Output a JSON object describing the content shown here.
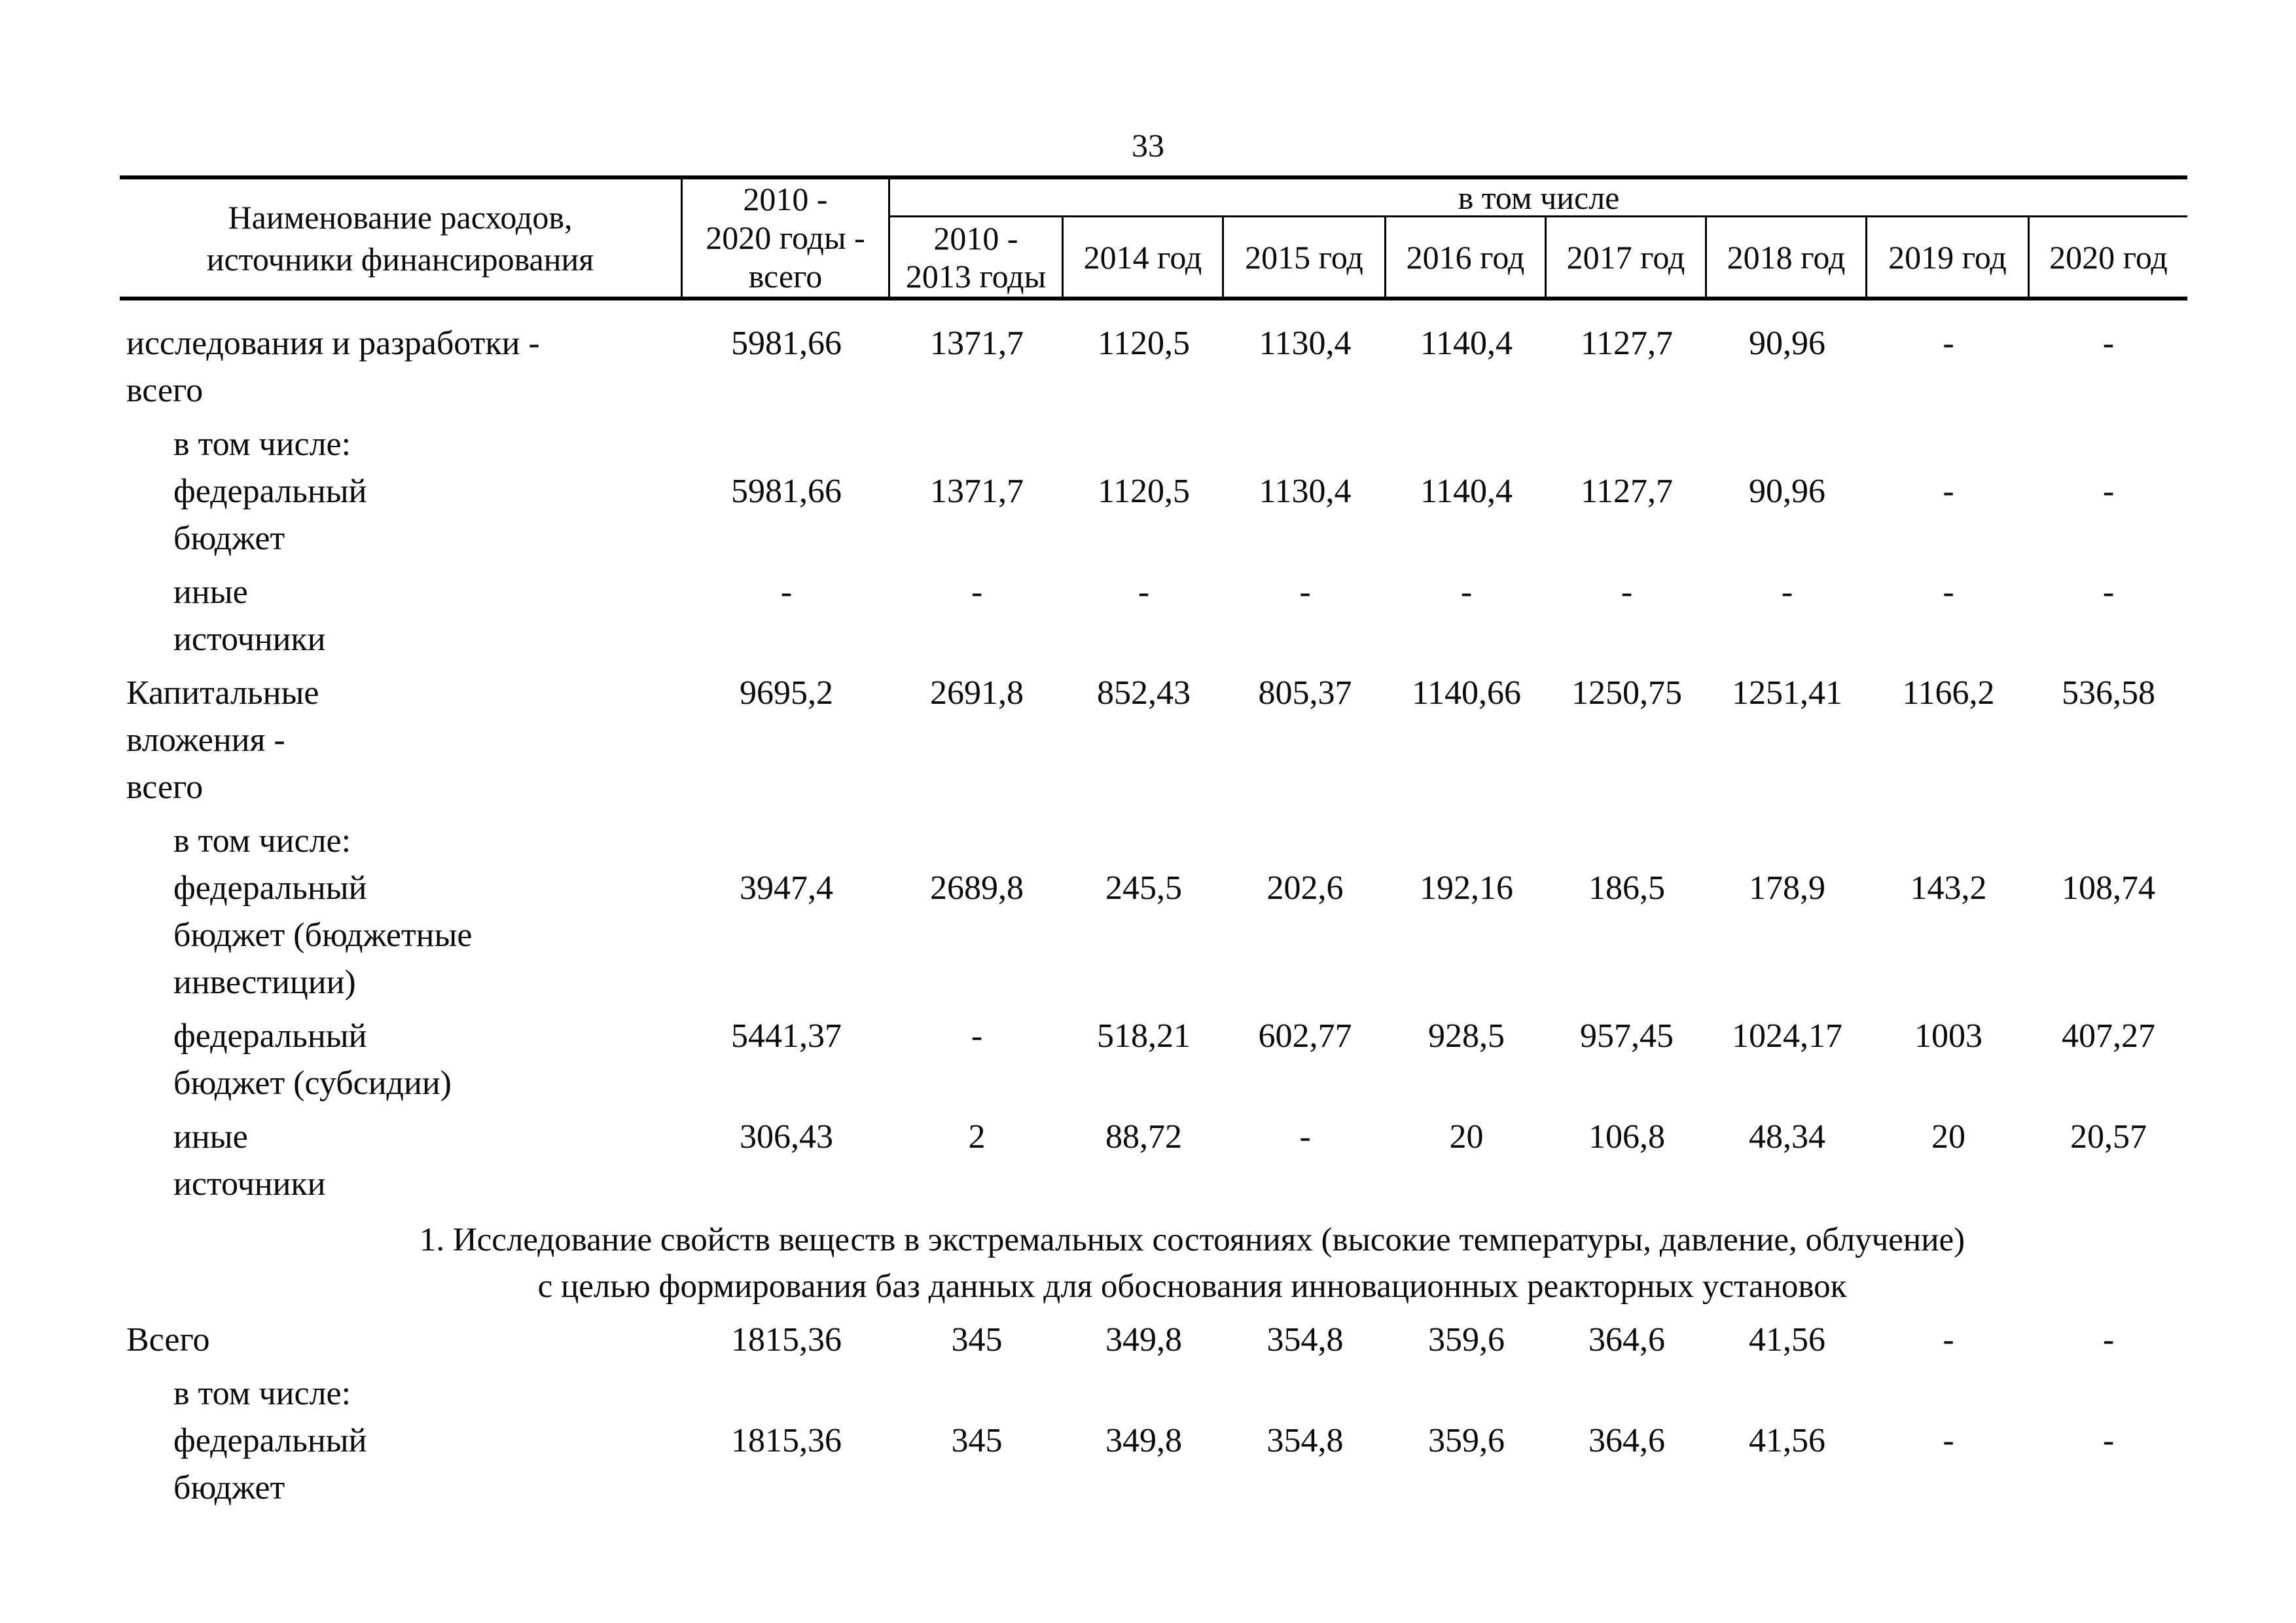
{
  "page": {
    "number": "33",
    "background_color": "#ffffff",
    "text_color": "#0b0b0b"
  },
  "table": {
    "header": {
      "name_col_lines": [
        "Наименование расходов,",
        "источники финансирования"
      ],
      "total_col_lines": [
        "2010 -",
        "2020 годы -",
        "всего"
      ],
      "group_label": "в том числе",
      "year_columns": [
        {
          "lines": [
            "2010 -",
            "2013 годы"
          ]
        },
        {
          "lines": [
            "2014 год"
          ]
        },
        {
          "lines": [
            "2015 год"
          ]
        },
        {
          "lines": [
            "2016 год"
          ]
        },
        {
          "lines": [
            "2017 год"
          ]
        },
        {
          "lines": [
            "2018 год"
          ]
        },
        {
          "lines": [
            "2019 год"
          ]
        },
        {
          "lines": [
            "2020 год"
          ]
        }
      ]
    },
    "sections": [
      {
        "rows": [
          {
            "label_lines": [
              "исследования и разработки -",
              "всего"
            ],
            "indent": false,
            "values_line": 0,
            "values": [
              "5981,66",
              "1371,7",
              "1120,5",
              "1130,4",
              "1140,4",
              "1127,7",
              "90,96",
              "-",
              "-"
            ]
          },
          {
            "label_lines": [
              "в том числе:",
              "федеральный",
              "бюджет"
            ],
            "indent": true,
            "values_line": 1,
            "values": [
              "5981,66",
              "1371,7",
              "1120,5",
              "1130,4",
              "1140,4",
              "1127,7",
              "90,96",
              "-",
              "-"
            ]
          },
          {
            "label_lines": [
              "иные",
              "источники"
            ],
            "indent": true,
            "values_line": 0,
            "values": [
              "-",
              "-",
              "-",
              "-",
              "-",
              "-",
              "-",
              "-",
              "-"
            ]
          },
          {
            "label_lines": [
              "Капитальные",
              "вложения -",
              "всего"
            ],
            "indent": false,
            "values_line": 0,
            "values": [
              "9695,2",
              "2691,8",
              "852,43",
              "805,37",
              "1140,66",
              "1250,75",
              "1251,41",
              "1166,2",
              "536,58"
            ]
          },
          {
            "label_lines": [
              "в том числе:",
              "федеральный",
              "бюджет (бюджетные",
              "инвестиции)"
            ],
            "indent": true,
            "values_line": 1,
            "values": [
              "3947,4",
              "2689,8",
              "245,5",
              "202,6",
              "192,16",
              "186,5",
              "178,9",
              "143,2",
              "108,74"
            ]
          },
          {
            "label_lines": [
              "федеральный",
              "бюджет (субсидии)"
            ],
            "indent": true,
            "values_line": 0,
            "values": [
              "5441,37",
              "-",
              "518,21",
              "602,77",
              "928,5",
              "957,45",
              "1024,17",
              "1003",
              "407,27"
            ]
          },
          {
            "label_lines": [
              "иные",
              "источники"
            ],
            "indent": true,
            "values_line": 0,
            "values": [
              "306,43",
              "2",
              "88,72",
              "-",
              "20",
              "106,8",
              "48,34",
              "20",
              "20,57"
            ]
          }
        ]
      },
      {
        "heading_lines": [
          "1. Исследование свойств веществ в экстремальных состояниях (высокие температуры, давление, облучение)",
          "с целью формирования баз данных для обоснования инновационных реакторных установок"
        ],
        "rows": [
          {
            "label_lines": [
              "Всего"
            ],
            "indent": false,
            "values_line": 0,
            "values": [
              "1815,36",
              "345",
              "349,8",
              "354,8",
              "359,6",
              "364,6",
              "41,56",
              "-",
              "-"
            ]
          },
          {
            "label_lines": [
              "в том числе:",
              "федеральный",
              "бюджет"
            ],
            "indent": true,
            "values_line": 1,
            "values": [
              "1815,36",
              "345",
              "349,8",
              "354,8",
              "359,6",
              "364,6",
              "41,56",
              "-",
              "-"
            ]
          }
        ]
      }
    ]
  }
}
